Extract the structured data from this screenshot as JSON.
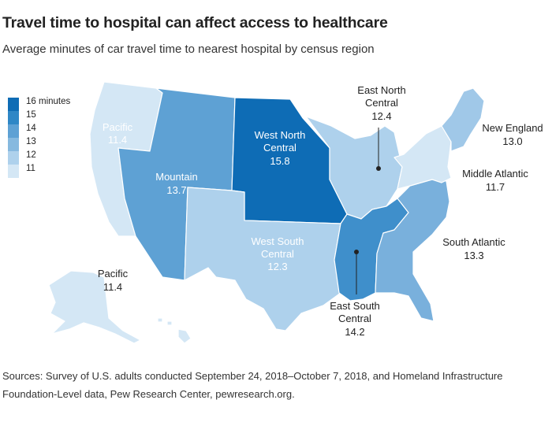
{
  "title": "Travel time to hospital can affect access to healthcare",
  "subtitle": "Average minutes of car travel time to nearest hospital by census region",
  "legend": {
    "items": [
      {
        "label": "16 minutes",
        "color": "#0e6cb5"
      },
      {
        "label": "15",
        "color": "#2f87c6"
      },
      {
        "label": "14",
        "color": "#5ea1d4"
      },
      {
        "label": "13",
        "color": "#86b9df"
      },
      {
        "label": "12",
        "color": "#aed1ec"
      },
      {
        "label": "11",
        "color": "#d4e7f5"
      }
    ]
  },
  "regions": [
    {
      "name": "Pacific",
      "value": "11.4",
      "color": "#d4e7f5"
    },
    {
      "name": "Mountain",
      "value": "13.7",
      "color": "#5ea1d4"
    },
    {
      "name": "West North Central",
      "value": "15.8",
      "color": "#0e6cb5"
    },
    {
      "name": "West South Central",
      "value": "12.3",
      "color": "#aed1ec"
    },
    {
      "name": "East North Central",
      "value": "12.4",
      "color": "#aed1ec"
    },
    {
      "name": "East South Central",
      "value": "14.2",
      "color": "#3f8fcb"
    },
    {
      "name": "South Atlantic",
      "value": "13.3",
      "color": "#79b0dc"
    },
    {
      "name": "Middle Atlantic",
      "value": "11.7",
      "color": "#d4e7f5"
    },
    {
      "name": "New England",
      "value": "13.0",
      "color": "#a0c8e8"
    }
  ],
  "labels": {
    "pacific_name": "Pacific",
    "pacific_value": "11.4",
    "pacific2_name": "Pacific",
    "pacific2_value": "11.4",
    "mountain_name": "Mountain",
    "mountain_value": "13.7",
    "wnc_line1": "West North",
    "wnc_line2": "Central",
    "wnc_value": "15.8",
    "wsc_line1": "West South",
    "wsc_line2": "Central",
    "wsc_value": "12.3",
    "enc_line1": "East North",
    "enc_line2": "Central",
    "enc_value": "12.4",
    "esc_line1": "East South",
    "esc_line2": "Central",
    "esc_value": "14.2",
    "sa_name": "South Atlantic",
    "sa_value": "13.3",
    "ma_name": "Middle Atlantic",
    "ma_value": "11.7",
    "ne_name": "New England",
    "ne_value": "13.0"
  },
  "source_line1": "Sources: Survey of U.S. adults conducted September 24, 2018–October 7, 2018, and Homeland Infrastructure",
  "source_line2": "Foundation-Level data, Pew Research Center, pewresearch.org."
}
